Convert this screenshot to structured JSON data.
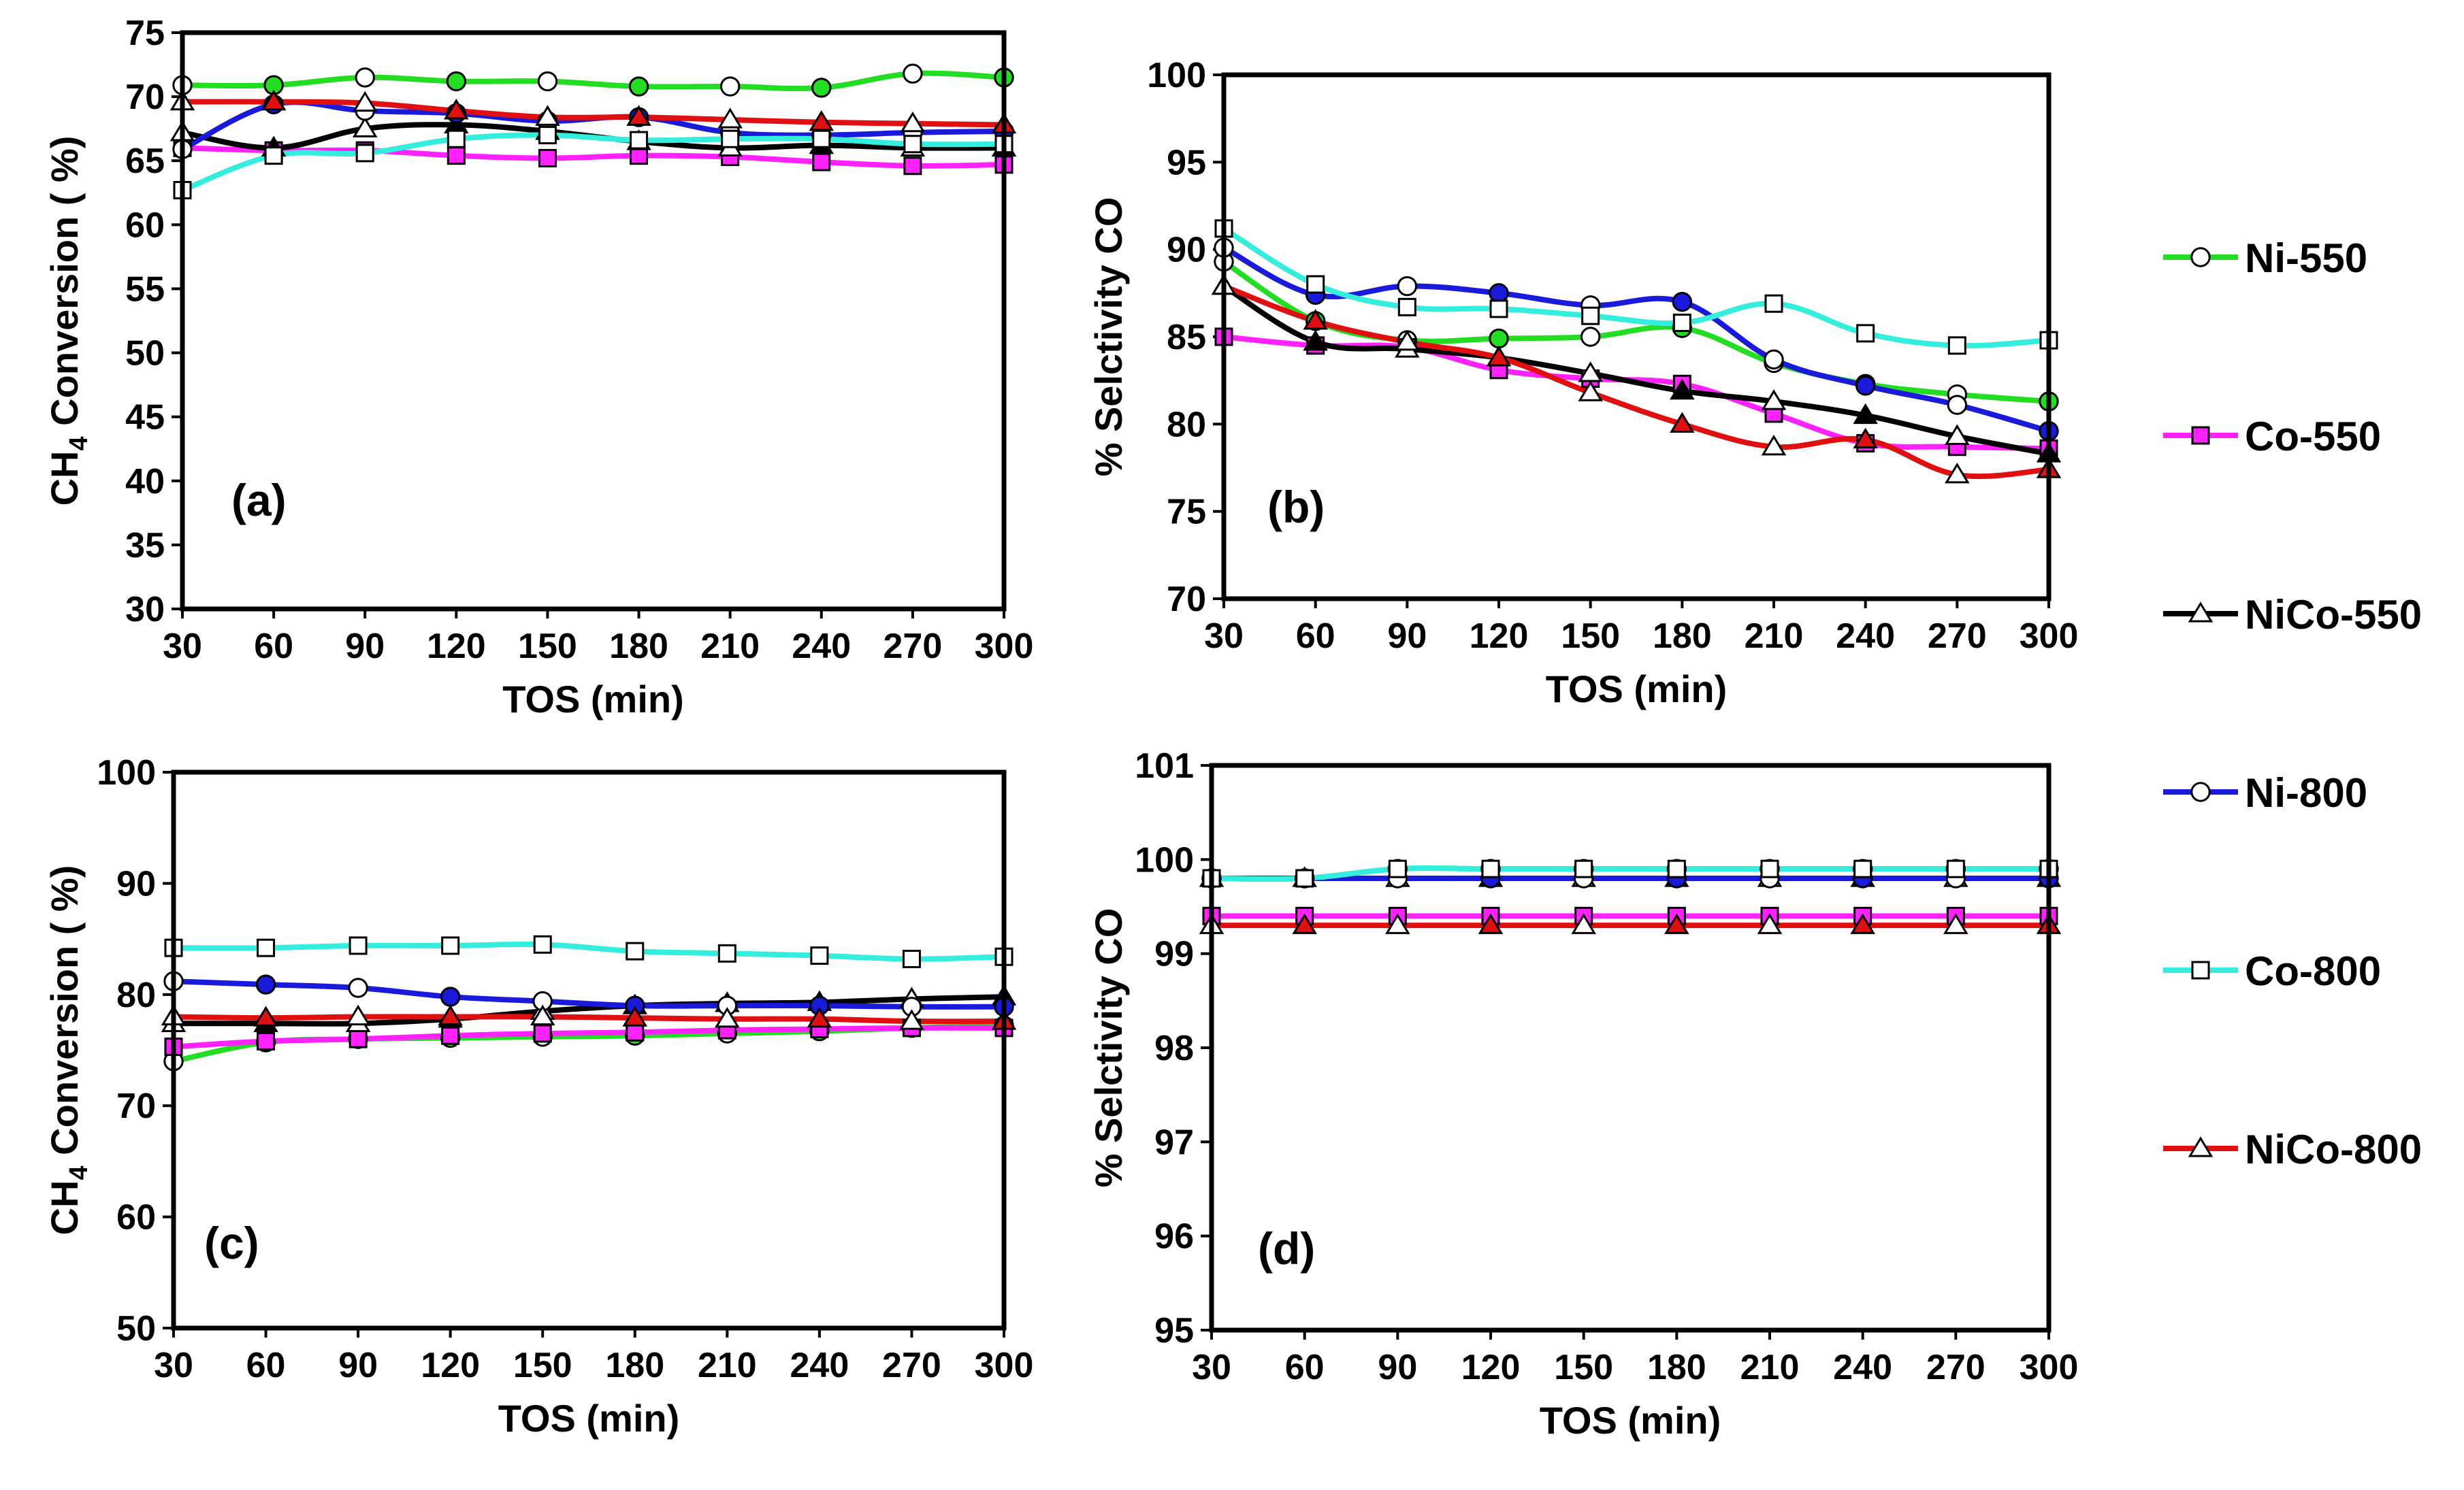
{
  "figure": {
    "x_axis_label": "TOS (min)",
    "y_axis_label_conversion_main": "CH",
    "y_axis_label_conversion_sub": "4",
    "y_axis_label_conversion_rest": " Conversion ( %)",
    "y_axis_label_selectivity": "% Selctivity CO"
  },
  "legend": [
    {
      "name": "Ni-550",
      "color": "#22dd22",
      "marker": "circle"
    },
    {
      "name": "Co-550",
      "color": "#ff22ff",
      "marker": "square"
    },
    {
      "name": "NiCo-550",
      "color": "#000000",
      "marker": "triangle"
    },
    {
      "name": "Ni-800",
      "color": "#1a1adb",
      "marker": "circle"
    },
    {
      "name": "Co-800",
      "color": "#33eedd",
      "marker": "square"
    },
    {
      "name": "NiCo-800",
      "color": "#e01010",
      "marker": "triangle"
    }
  ],
  "chart_data": [
    {
      "id": "a",
      "type": "line",
      "panel_label": "(a)",
      "xlabel": "TOS (min)",
      "ylabel": "CH4 Conversion ( %)",
      "x": [
        30,
        60,
        90,
        120,
        150,
        180,
        210,
        240,
        270,
        300
      ],
      "xticks": [
        30,
        60,
        90,
        120,
        150,
        180,
        210,
        240,
        270,
        300
      ],
      "yticks": [
        30,
        35,
        40,
        45,
        50,
        55,
        60,
        65,
        70,
        75
      ],
      "ylim": [
        30,
        75
      ],
      "series": [
        {
          "name": "Ni-550",
          "values": [
            70.9,
            70.9,
            71.5,
            71.2,
            71.2,
            70.8,
            70.8,
            70.7,
            71.8,
            71.5
          ]
        },
        {
          "name": "Co-550",
          "values": [
            66.0,
            65.8,
            65.8,
            65.4,
            65.2,
            65.4,
            65.3,
            64.9,
            64.6,
            64.7
          ]
        },
        {
          "name": "NiCo-550",
          "values": [
            67.2,
            66.0,
            67.5,
            67.8,
            67.3,
            66.5,
            66.0,
            66.2,
            66.0,
            66.0
          ]
        },
        {
          "name": "Ni-800",
          "values": [
            65.9,
            69.4,
            68.9,
            68.7,
            68.1,
            68.4,
            67.2,
            67.0,
            67.2,
            67.3
          ]
        },
        {
          "name": "Co-800",
          "values": [
            62.7,
            65.4,
            65.6,
            66.7,
            67.0,
            66.6,
            66.7,
            66.7,
            66.3,
            66.3
          ]
        },
        {
          "name": "NiCo-800",
          "values": [
            69.6,
            69.6,
            69.5,
            68.9,
            68.4,
            68.4,
            68.2,
            68.0,
            67.9,
            67.8
          ]
        }
      ]
    },
    {
      "id": "b",
      "type": "line",
      "panel_label": "(b)",
      "xlabel": "TOS (min)",
      "ylabel": "% Selctivity CO",
      "x": [
        30,
        60,
        90,
        120,
        150,
        180,
        210,
        240,
        270,
        300
      ],
      "xticks": [
        30,
        60,
        90,
        120,
        150,
        180,
        210,
        240,
        270,
        300
      ],
      "yticks": [
        70,
        75,
        80,
        85,
        90,
        95,
        100
      ],
      "ylim": [
        70,
        100
      ],
      "series": [
        {
          "name": "Ni-550",
          "values": [
            89.3,
            85.9,
            84.8,
            84.9,
            85.0,
            85.5,
            83.5,
            82.3,
            81.7,
            81.3
          ]
        },
        {
          "name": "Co-550",
          "values": [
            85.0,
            84.5,
            84.4,
            83.1,
            82.6,
            82.3,
            80.6,
            78.9,
            78.7,
            78.6
          ]
        },
        {
          "name": "NiCo-550",
          "values": [
            87.9,
            84.7,
            84.3,
            83.8,
            82.9,
            81.9,
            81.3,
            80.5,
            79.3,
            78.3
          ]
        },
        {
          "name": "Ni-800",
          "values": [
            90.1,
            87.4,
            87.9,
            87.5,
            86.8,
            87.0,
            83.7,
            82.2,
            81.1,
            79.6
          ]
        },
        {
          "name": "Co-800",
          "values": [
            91.2,
            88.0,
            86.7,
            86.6,
            86.2,
            85.8,
            86.9,
            85.2,
            84.5,
            84.8
          ]
        },
        {
          "name": "NiCo-800",
          "values": [
            87.9,
            85.9,
            84.7,
            83.8,
            81.8,
            80.0,
            78.7,
            79.1,
            77.1,
            77.4
          ]
        }
      ]
    },
    {
      "id": "c",
      "type": "line",
      "panel_label": "(c)",
      "xlabel": "TOS (min)",
      "ylabel": "CH4 Conversion ( %)",
      "x": [
        30,
        60,
        90,
        120,
        150,
        180,
        210,
        240,
        270,
        300
      ],
      "xticks": [
        30,
        60,
        90,
        120,
        150,
        180,
        210,
        240,
        270,
        300
      ],
      "yticks": [
        50,
        60,
        70,
        80,
        90,
        100
      ],
      "ylim": [
        50,
        100
      ],
      "series": [
        {
          "name": "Ni-550",
          "values": [
            74.0,
            75.7,
            76.0,
            76.1,
            76.2,
            76.3,
            76.5,
            76.7,
            77.0,
            77.2
          ]
        },
        {
          "name": "Co-550",
          "values": [
            75.3,
            75.8,
            76.0,
            76.3,
            76.5,
            76.6,
            76.8,
            76.9,
            77.0,
            77.0
          ]
        },
        {
          "name": "NiCo-550",
          "values": [
            77.4,
            77.4,
            77.4,
            77.8,
            78.5,
            79.0,
            79.2,
            79.3,
            79.6,
            79.8
          ]
        },
        {
          "name": "Ni-800",
          "values": [
            81.2,
            80.9,
            80.6,
            79.8,
            79.4,
            79.0,
            79.0,
            79.0,
            78.9,
            78.9
          ]
        },
        {
          "name": "Co-800",
          "values": [
            84.2,
            84.2,
            84.4,
            84.4,
            84.5,
            83.9,
            83.7,
            83.5,
            83.2,
            83.4
          ]
        },
        {
          "name": "NiCo-800",
          "values": [
            78.0,
            77.9,
            78.0,
            78.0,
            78.0,
            77.9,
            77.8,
            77.8,
            77.6,
            77.6
          ]
        }
      ]
    },
    {
      "id": "d",
      "type": "line",
      "panel_label": "(d)",
      "xlabel": "TOS (min)",
      "ylabel": "% Selctivity CO",
      "x": [
        30,
        60,
        90,
        120,
        150,
        180,
        210,
        240,
        270,
        300
      ],
      "xticks": [
        30,
        60,
        90,
        120,
        150,
        180,
        210,
        240,
        270,
        300
      ],
      "yticks": [
        95,
        96,
        97,
        98,
        99,
        100,
        101
      ],
      "ylim": [
        95,
        101
      ],
      "series": [
        {
          "name": "Ni-550",
          "values": [
            99.8,
            99.8,
            99.9,
            99.9,
            99.9,
            99.9,
            99.9,
            99.9,
            99.9,
            99.9
          ]
        },
        {
          "name": "Co-550",
          "values": [
            99.4,
            99.4,
            99.4,
            99.4,
            99.4,
            99.4,
            99.4,
            99.4,
            99.4,
            99.4
          ]
        },
        {
          "name": "NiCo-550",
          "values": [
            99.8,
            99.8,
            99.8,
            99.8,
            99.8,
            99.8,
            99.8,
            99.8,
            99.8,
            99.8
          ]
        },
        {
          "name": "Ni-800",
          "values": [
            99.8,
            99.8,
            99.8,
            99.8,
            99.8,
            99.8,
            99.8,
            99.8,
            99.8,
            99.8
          ]
        },
        {
          "name": "Co-800",
          "values": [
            99.8,
            99.8,
            99.9,
            99.9,
            99.9,
            99.9,
            99.9,
            99.9,
            99.9,
            99.9
          ]
        },
        {
          "name": "NiCo-800",
          "values": [
            99.3,
            99.3,
            99.3,
            99.3,
            99.3,
            99.3,
            99.3,
            99.3,
            99.3,
            99.3
          ]
        }
      ]
    }
  ]
}
